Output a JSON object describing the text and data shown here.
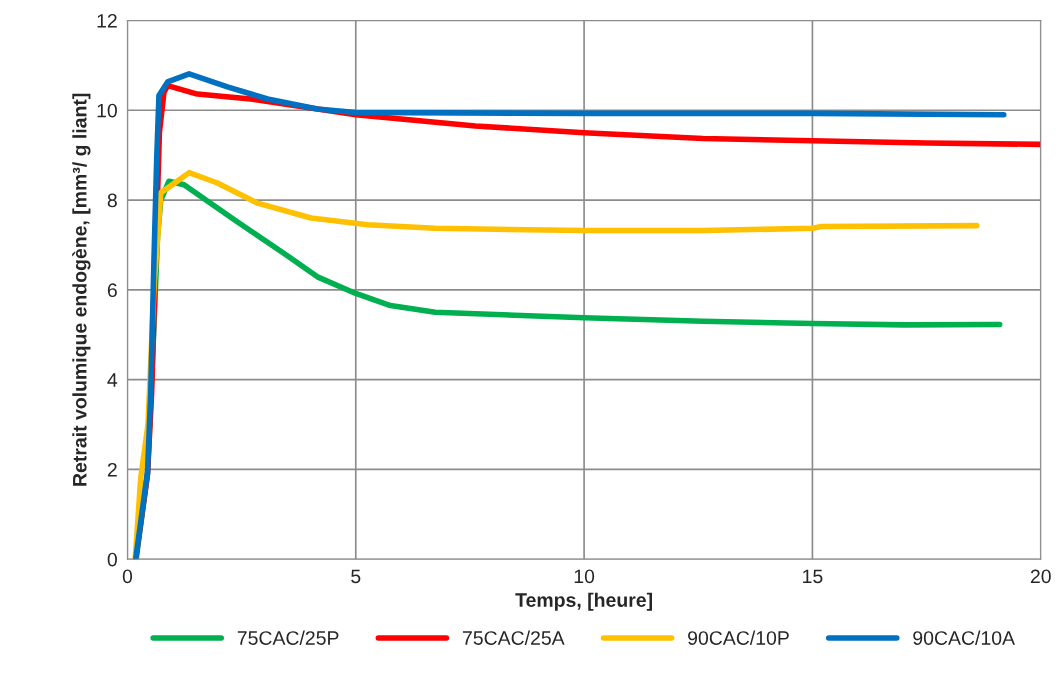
{
  "chart_data": {
    "type": "line",
    "xlabel": "Temps, [heure]",
    "ylabel": "Retrait volumique endogène, [mm³/ g liant]",
    "xlim": [
      0,
      20
    ],
    "xticks": [
      0,
      5,
      10,
      15,
      20
    ],
    "ylim": [
      0,
      12
    ],
    "yticks": [
      0,
      2,
      4,
      6,
      8,
      10,
      12
    ],
    "grid": true,
    "legend": "bottom",
    "line_style": "solid",
    "series": [
      {
        "name": "75CAC/25P",
        "color": "#00b050",
        "x": [
          0.19,
          0.44,
          0.58,
          0.66,
          0.73,
          0.91,
          1.24,
          2.34,
          3.43,
          4.16,
          5.0,
          5.76,
          6.74,
          10,
          12.6,
          15,
          17,
          19.1
        ],
        "values": [
          0,
          1.9,
          5.2,
          7.2,
          8.0,
          8.42,
          8.34,
          7.56,
          6.81,
          6.29,
          5.92,
          5.65,
          5.5,
          5.38,
          5.3,
          5.25,
          5.22,
          5.23
        ]
      },
      {
        "name": "75CAC/25A",
        "color": "#ff0000",
        "x": [
          0.18,
          0.44,
          0.53,
          0.7,
          0.8,
          0.88,
          1.53,
          2.7,
          4.16,
          5,
          7.62,
          10,
          12.6,
          15,
          17.5,
          20
        ],
        "values": [
          0,
          1.9,
          3.7,
          9.5,
          10.4,
          10.55,
          10.36,
          10.25,
          10.03,
          9.9,
          9.65,
          9.5,
          9.37,
          9.32,
          9.27,
          9.24
        ]
      },
      {
        "name": "90CAC/10P",
        "color": "#ffc000",
        "x": [
          0.17,
          0.29,
          0.45,
          0.58,
          0.73,
          1.35,
          1.97,
          2.85,
          4.02,
          5.26,
          6.74,
          10,
          12.6,
          15,
          15.2,
          18.6
        ],
        "values": [
          0,
          1.8,
          3.0,
          6.0,
          8.16,
          8.61,
          8.38,
          7.93,
          7.6,
          7.45,
          7.37,
          7.32,
          7.32,
          7.37,
          7.41,
          7.43
        ]
      },
      {
        "name": "90CAC/10A",
        "color": "#0070c0",
        "x": [
          0.18,
          0.44,
          0.51,
          0.58,
          0.64,
          0.69,
          0.88,
          1.35,
          2.19,
          3.07,
          4.16,
          5,
          10,
          15,
          19.19
        ],
        "values": [
          0,
          1.95,
          3.7,
          6.66,
          8.9,
          10.33,
          10.63,
          10.81,
          10.52,
          10.25,
          10.03,
          9.95,
          9.93,
          9.93,
          9.9
        ]
      }
    ]
  }
}
